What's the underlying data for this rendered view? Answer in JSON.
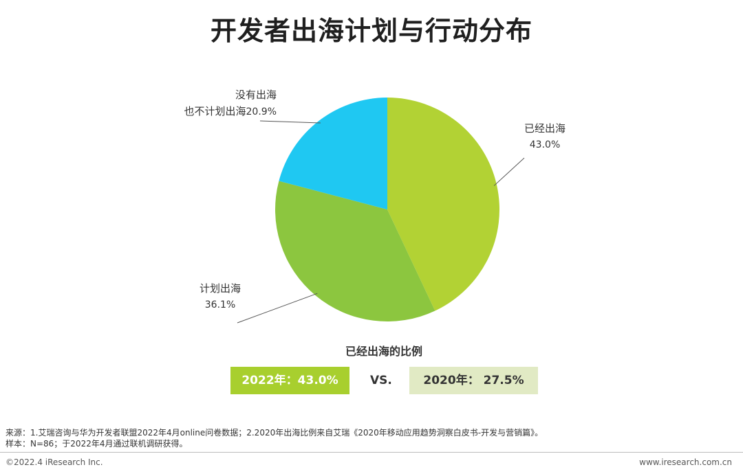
{
  "title": "开发者出海计划与行动分布",
  "chart_data": {
    "type": "pie",
    "slices": [
      {
        "label": "已经出海",
        "value": 43.0,
        "value_label": "43.0%",
        "color": "#b2d234"
      },
      {
        "label": "计划出海",
        "value": 36.1,
        "value_label": "36.1%",
        "color": "#8cc63f"
      },
      {
        "label": "没有出海也不计划出海",
        "label_line1": "没有出海",
        "label_line2": "也不计划出海",
        "value": 20.9,
        "value_label": "20.9%",
        "color": "#1fc8f2"
      }
    ]
  },
  "comparison": {
    "title": "已经出海的比例",
    "left": "2022年：43.0%",
    "vs": "VS.",
    "right": "2020年： 27.5%"
  },
  "footer": {
    "source_line1": "来源：1.艾瑞咨询与华为开发者联盟2022年4月online问卷数据；2.2020年出海比例来自艾瑞《2020年移动应用趋势洞察白皮书-开发与营销篇》。",
    "source_line2": "样本：N=86；于2022年4月通过联机调研获得。",
    "copyright": "©2022.4 iResearch Inc.",
    "website": "www.iresearch.com.cn"
  }
}
